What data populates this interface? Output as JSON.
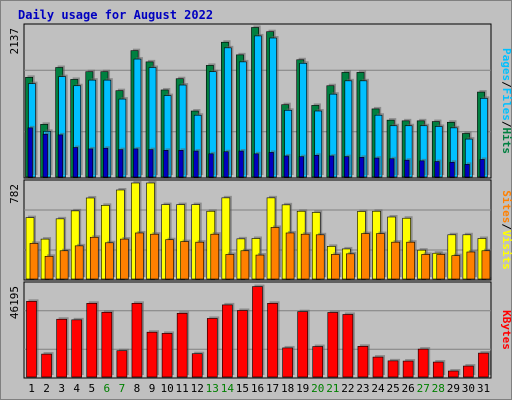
{
  "chart_data": {
    "type": "bar",
    "title": "Daily usage for August 2022",
    "categories": [
      "1",
      "2",
      "3",
      "4",
      "5",
      "6",
      "7",
      "8",
      "9",
      "10",
      "11",
      "12",
      "13",
      "14",
      "15",
      "16",
      "17",
      "18",
      "19",
      "20",
      "21",
      "22",
      "23",
      "24",
      "25",
      "26",
      "27",
      "28",
      "29",
      "30",
      "31"
    ],
    "weekend_days": [
      "6",
      "7",
      "13",
      "14",
      "20",
      "21",
      "27",
      "28"
    ],
    "colors": {
      "title": "#0000c0",
      "hits": "#008040",
      "files": "#00c0ff",
      "pages": "#0000c0",
      "visits": "#ffff00",
      "sites": "#ff8000",
      "kbytes": "#ff0000",
      "weekend": "#008000",
      "weekday": "#000000",
      "plot_bg": "#c0c0c0",
      "grid": "#808080"
    },
    "panels": [
      {
        "id": "hits",
        "max_label": "2137",
        "ylim": [
          0,
          2137
        ],
        "legend": [
          "Pages",
          "/",
          "Files",
          "/",
          "Hits"
        ],
        "legend_colors": [
          "#00c0ff",
          "#000000",
          "#00c0ff",
          "#000000",
          "#008040"
        ],
        "series": [
          {
            "name": "Hits",
            "color": "#008040",
            "values": [
              1420,
              750,
              1560,
              1390,
              1500,
              1500,
              1230,
              1800,
              1640,
              1240,
              1400,
              940,
              1590,
              1920,
              1740,
              2130,
              2070,
              1030,
              1670,
              1020,
              1300,
              1490,
              1490,
              970,
              810,
              800,
              800,
              790,
              780,
              620,
              1210
            ]
          },
          {
            "name": "Files",
            "color": "#00c0ff",
            "values": [
              1330,
              650,
              1430,
              1300,
              1380,
              1380,
              1110,
              1680,
              1560,
              1160,
              1310,
              880,
              1500,
              1840,
              1640,
              2010,
              1980,
              950,
              1620,
              940,
              1180,
              1370,
              1370,
              880,
              730,
              730,
              730,
              720,
              700,
              540,
              1120
            ]
          },
          {
            "name": "Pages",
            "color": "#0000c0",
            "values": [
              700,
              610,
              600,
              420,
              400,
              410,
              390,
              400,
              390,
              380,
              380,
              370,
              330,
              360,
              370,
              330,
              350,
              300,
              290,
              310,
              300,
              290,
              280,
              270,
              260,
              240,
              230,
              220,
              210,
              180,
              250
            ]
          }
        ]
      },
      {
        "id": "visits",
        "max_label": "782",
        "ylim": [
          0,
          782
        ],
        "legend": [
          "Sites",
          "/",
          "Visits"
        ],
        "legend_colors": [
          "#ff8000",
          "#000000",
          "#ffff00"
        ],
        "series": [
          {
            "name": "Visits",
            "color": "#ffff00",
            "values": [
              500,
              325,
              490,
              555,
              660,
              600,
              725,
              782,
              782,
              606,
              606,
              606,
              552,
              661,
              327,
              330,
              661,
              604,
              552,
              542,
              266,
              245,
              550,
              552,
              505,
              495,
              235,
              210,
              360,
              360,
              330
            ]
          },
          {
            "name": "Sites",
            "color": "#ff8000",
            "values": [
              290,
              185,
              230,
              270,
              340,
              295,
              325,
              375,
              365,
              320,
              305,
              300,
              365,
              200,
              230,
              195,
              420,
              375,
              365,
              360,
              200,
              205,
              370,
              370,
              300,
              300,
              200,
              200,
              190,
              220,
              230
            ]
          }
        ]
      },
      {
        "id": "kbytes",
        "max_label": "46195",
        "ylim": [
          0,
          46195
        ],
        "legend": [
          "KBytes"
        ],
        "legend_colors": [
          "#ff0000"
        ],
        "series": [
          {
            "name": "KBytes",
            "color": "#ff0000",
            "values": [
              38000,
              11500,
              29000,
              28700,
              37000,
              32500,
              13200,
              37000,
              22500,
              21900,
              32000,
              11700,
              29400,
              36200,
              33400,
              45400,
              37000,
              14600,
              32800,
              15300,
              32400,
              31400,
              15400,
              10000,
              8100,
              8000,
              14000,
              7500,
              3000,
              5500,
              12000
            ]
          }
        ]
      }
    ]
  }
}
